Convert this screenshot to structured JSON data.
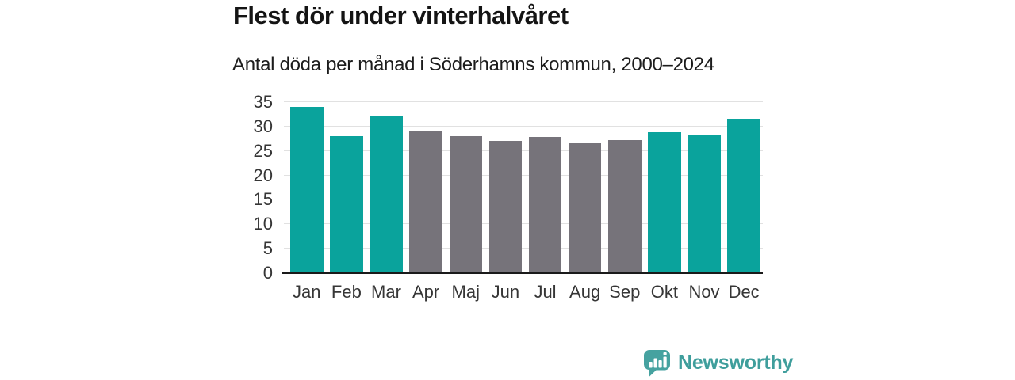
{
  "chart_data": {
    "type": "bar",
    "title": "Flest dör under vinterhalvåret",
    "subtitle": "Antal döda per månad i Söderhamns kommun, 2000–2024",
    "categories": [
      "Jan",
      "Feb",
      "Mar",
      "Apr",
      "Maj",
      "Jun",
      "Jul",
      "Aug",
      "Sep",
      "Okt",
      "Nov",
      "Dec"
    ],
    "values": [
      34.0,
      28.1,
      32.1,
      29.2,
      28.0,
      27.1,
      27.8,
      26.5,
      27.3,
      28.8,
      28.4,
      31.6
    ],
    "bar_colors": [
      "teal",
      "teal",
      "teal",
      "gray",
      "gray",
      "gray",
      "gray",
      "gray",
      "gray",
      "teal",
      "teal",
      "teal"
    ],
    "colors": {
      "teal": "#0aa39c",
      "gray": "#76737a",
      "grid": "#e1e1e1",
      "axis": "#1a1a1a",
      "tick_text": "#363636"
    },
    "xlabel": "",
    "ylabel": "",
    "ylim": [
      0,
      35
    ],
    "yticks": [
      0,
      5,
      10,
      15,
      20,
      25,
      30,
      35
    ],
    "grid": true,
    "legend": "none"
  },
  "footer": {
    "brand": "Newsworthy",
    "brand_color": "#3f9e9c",
    "icon_color": "#46a2a0",
    "icon_bar_color": "#ffffff",
    "logo_icon": "speech-bubble-bar-chart-icon"
  }
}
